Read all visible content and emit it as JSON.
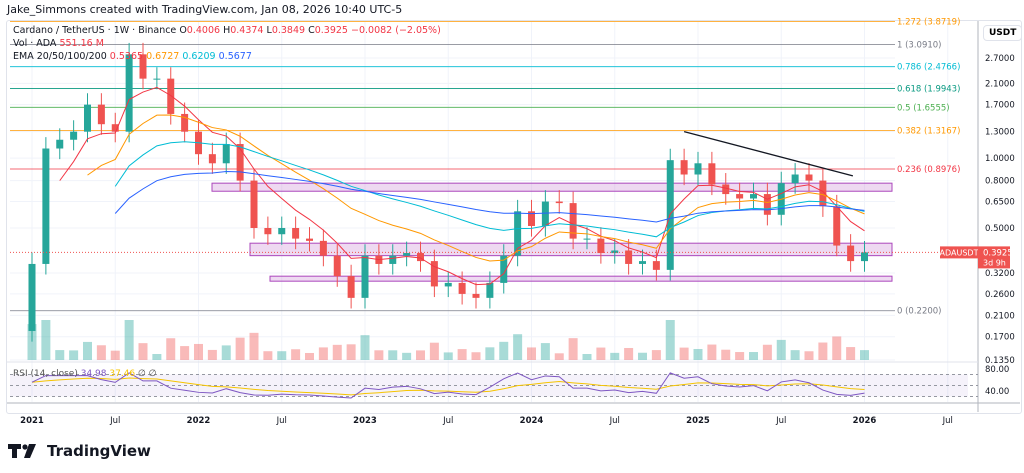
{
  "header": {
    "credit": "Jake_Simmons created with TradingView.com, Jan 08, 2026 10:40 UTC-5"
  },
  "legend": {
    "symbol": "Cardano / TetherUS · 1W · Binance",
    "o_label": "O",
    "o": "0.4006",
    "h_label": "H",
    "h": "0.4374",
    "l_label": "L",
    "l": "0.3849",
    "c_label": "C",
    "c": "0.3925",
    "change": "−0.0082 (−2.05%)",
    "vol_label": "Vol · ADA",
    "vol": "551.16 M",
    "ema_label": "EMA 20/50/100/200",
    "ema20": "0.5365",
    "ema50": "0.6727",
    "ema100": "0.6209",
    "ema200": "0.5677",
    "rsi_label": "RSI (14, close)",
    "rsi": "34.98",
    "rsi_ma": "37.46",
    "rsi_x1": "∅",
    "rsi_x2": "∅"
  },
  "price_axis": {
    "currency": "USDT",
    "ticks": [
      "2.7000",
      "2.1000",
      "1.7000",
      "1.3000",
      "1.0000",
      "0.8000",
      "0.6500",
      "0.5000",
      "0.3200",
      "0.2600",
      "0.2100",
      "0.1700",
      "0.1350"
    ],
    "rsi_ticks": [
      "80.00",
      "40.00"
    ]
  },
  "price_tag": {
    "symbol": "ADAUSDT",
    "price": "0.3925",
    "countdown": "3d 9h"
  },
  "time_axis": {
    "labels": [
      "2021",
      "Jul",
      "2022",
      "Jul",
      "2023",
      "Jul",
      "2024",
      "Jul",
      "2025",
      "Jul",
      "2026",
      "Jul"
    ]
  },
  "fib_levels": [
    {
      "label": "1.272 (3.8719)",
      "value": 3.8719,
      "color": "#ff9800"
    },
    {
      "label": "1 (3.0910)",
      "value": 3.091,
      "color": "#787b86"
    },
    {
      "label": "0.786 (2.4766)",
      "value": 2.4766,
      "color": "#00bcd4"
    },
    {
      "label": "0.618 (1.9943)",
      "value": 1.9943,
      "color": "#089981"
    },
    {
      "label": "0.5 (1.6555)",
      "value": 1.6555,
      "color": "#4caf50"
    },
    {
      "label": "0.382 (1.3167)",
      "value": 1.3167,
      "color": "#ff9800"
    },
    {
      "label": "0.236 (0.8976)",
      "value": 0.8976,
      "color": "#f23645"
    },
    {
      "label": "0 (0.2200)",
      "value": 0.22,
      "color": "#787b86"
    }
  ],
  "colors": {
    "up": "#26a69a",
    "down": "#ef5350",
    "zone": "#ce93d8",
    "ema20": "#f23645",
    "ema50": "#ff9800",
    "ema100": "#00bcd4",
    "ema200": "#2962ff",
    "rsi": "#7e57c2",
    "rsi_ma": "#f5c400"
  },
  "footer": {
    "brand": "TradingView"
  },
  "chart_data": {
    "type": "candlestick",
    "scale": "log",
    "ylim": [
      0.135,
      2.9
    ],
    "x_range": [
      "2021-01",
      "2026-08"
    ],
    "months": [
      "2021-01",
      "2021-02",
      "2021-03",
      "2021-04",
      "2021-05",
      "2021-06",
      "2021-07",
      "2021-08",
      "2021-09",
      "2021-10",
      "2021-11",
      "2021-12",
      "2022-01",
      "2022-02",
      "2022-03",
      "2022-04",
      "2022-05",
      "2022-06",
      "2022-07",
      "2022-08",
      "2022-09",
      "2022-10",
      "2022-11",
      "2022-12",
      "2023-01",
      "2023-02",
      "2023-03",
      "2023-04",
      "2023-05",
      "2023-06",
      "2023-07",
      "2023-08",
      "2023-09",
      "2023-10",
      "2023-11",
      "2023-12",
      "2024-01",
      "2024-02",
      "2024-03",
      "2024-04",
      "2024-05",
      "2024-06",
      "2024-07",
      "2024-08",
      "2024-09",
      "2024-10",
      "2024-11",
      "2024-12",
      "2025-01",
      "2025-02",
      "2025-03",
      "2025-04",
      "2025-05",
      "2025-06",
      "2025-07",
      "2025-08",
      "2025-09",
      "2025-10",
      "2025-11",
      "2025-12",
      "2026-01"
    ],
    "close": [
      0.35,
      1.1,
      1.2,
      1.3,
      1.7,
      1.4,
      1.3,
      2.8,
      2.2,
      2.2,
      1.55,
      1.3,
      1.04,
      0.95,
      1.15,
      0.8,
      0.5,
      0.47,
      0.5,
      0.45,
      0.44,
      0.38,
      0.31,
      0.25,
      0.38,
      0.35,
      0.38,
      0.39,
      0.36,
      0.28,
      0.29,
      0.26,
      0.25,
      0.29,
      0.38,
      0.59,
      0.51,
      0.65,
      0.64,
      0.45,
      0.45,
      0.39,
      0.4,
      0.35,
      0.36,
      0.33,
      0.98,
      0.85,
      0.95,
      0.77,
      0.7,
      0.67,
      0.7,
      0.57,
      0.78,
      0.85,
      0.8,
      0.62,
      0.42,
      0.36,
      0.3925
    ],
    "zones": [
      [
        0.72,
        0.78
      ],
      [
        0.38,
        0.43
      ],
      [
        0.295,
        0.31
      ]
    ],
    "trendline": [
      [
        "2024-12",
        1.3
      ],
      [
        "2025-10",
        0.89
      ]
    ]
  }
}
